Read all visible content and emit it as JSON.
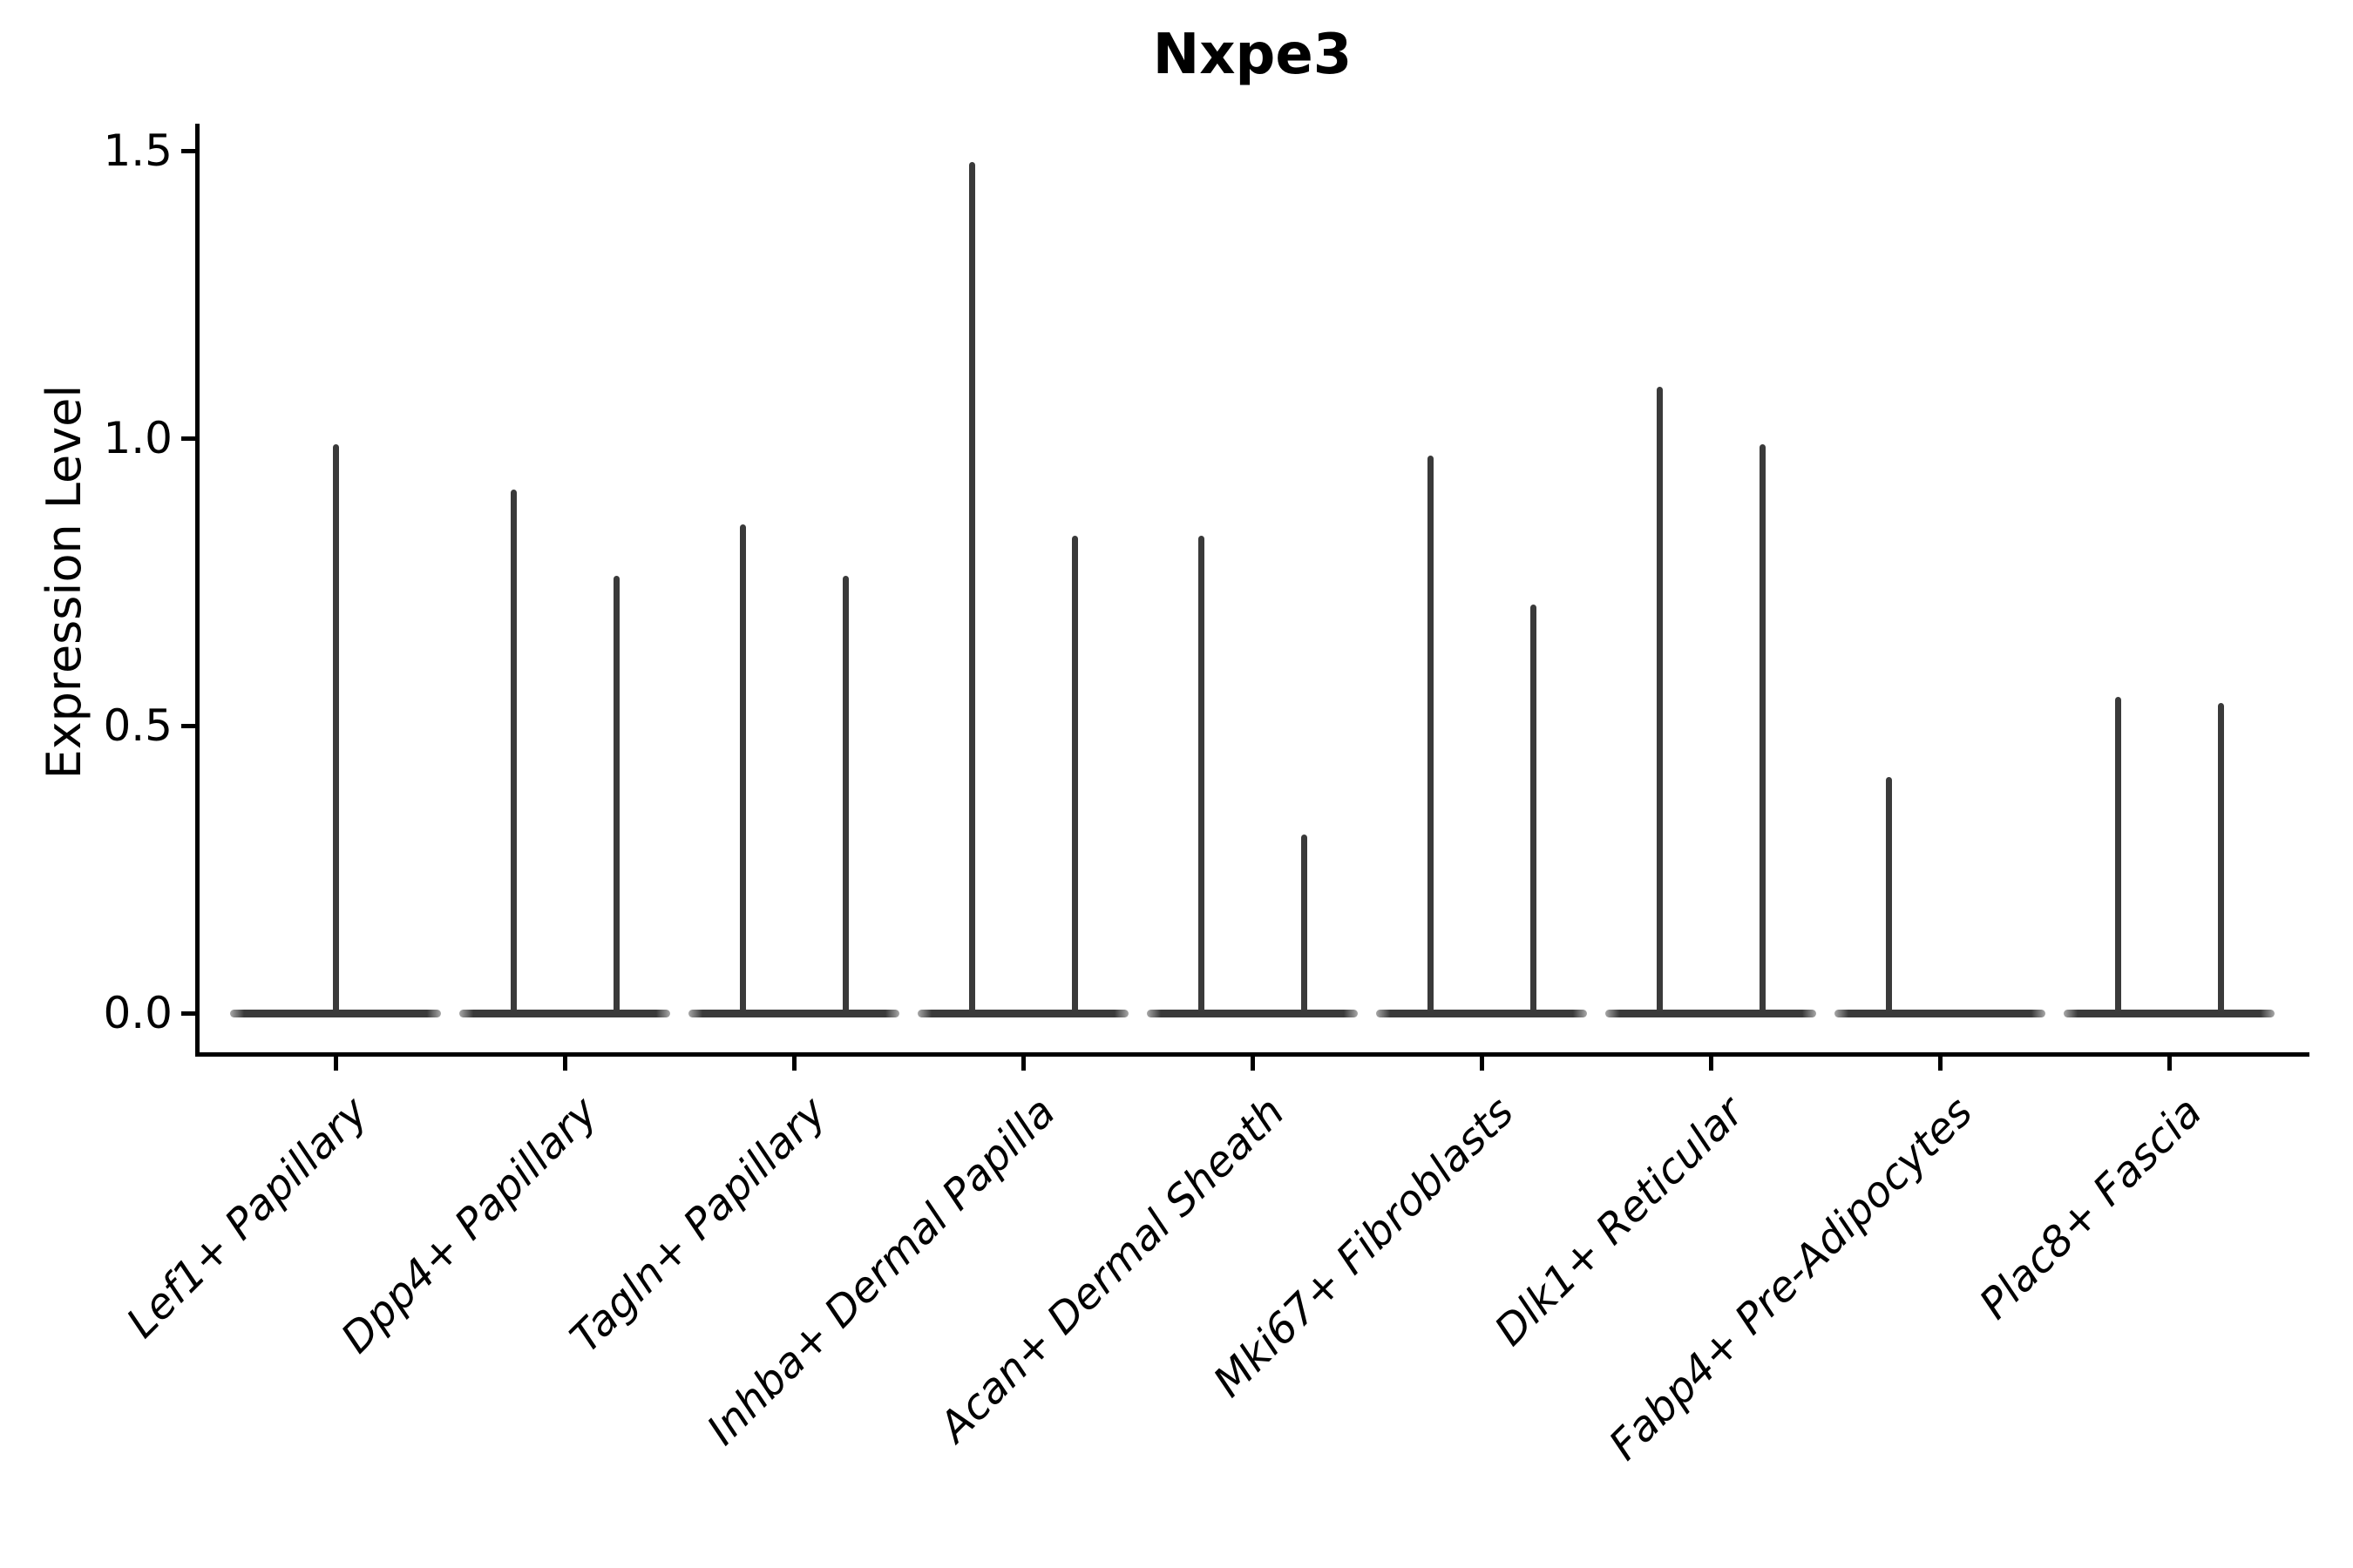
{
  "figure": {
    "background_color": "#ffffff",
    "text_color": "#000000"
  },
  "chart_data": {
    "type": "violin",
    "title": "Nxpe3",
    "xlabel": "",
    "ylabel": "Expression Level",
    "ylim": [
      0,
      1.5
    ],
    "yticks": [
      "0.0",
      "0.5",
      "1.0",
      "1.5"
    ],
    "grid": false,
    "legend": null,
    "layout_hints": {
      "x_tick_label_rotation_deg": 45,
      "x_tick_labels_italic": true,
      "spines": [
        "left",
        "bottom"
      ],
      "violin_shape": "flat zero-expression baseline with thin max-value spikes",
      "spike_positions_per_category": "center, or left/right pair"
    },
    "colors": {
      "violin": "#3a3a3a",
      "axes": "#000000",
      "title": "#000000"
    },
    "categories": [
      "Lef1+ Papillary",
      "Dpp4+ Papillary",
      "Tagln+ Papillary",
      "Inhba+ Dermal Papilla",
      "Acan+ Dermal Sheath",
      "Mki67+ Fibroblasts",
      "Dlk1+ Reticular",
      "Fabp4+ Pre-Adipocytes",
      "Plac8+ Fascia"
    ],
    "violins": [
      {
        "category": "Lef1+ Papillary",
        "spikes": [
          {
            "side": "center",
            "max_expression": 0.99
          }
        ]
      },
      {
        "category": "Dpp4+ Papillary",
        "spikes": [
          {
            "side": "left",
            "max_expression": 0.91
          },
          {
            "side": "right",
            "max_expression": 0.76
          }
        ]
      },
      {
        "category": "Tagln+ Papillary",
        "spikes": [
          {
            "side": "left",
            "max_expression": 0.85
          },
          {
            "side": "right",
            "max_expression": 0.76
          }
        ]
      },
      {
        "category": "Inhba+ Dermal Papilla",
        "spikes": [
          {
            "side": "left",
            "max_expression": 1.48
          },
          {
            "side": "right",
            "max_expression": 0.83
          }
        ]
      },
      {
        "category": "Acan+ Dermal Sheath",
        "spikes": [
          {
            "side": "left",
            "max_expression": 0.83
          },
          {
            "side": "right",
            "max_expression": 0.31
          }
        ]
      },
      {
        "category": "Mki67+ Fibroblasts",
        "spikes": [
          {
            "side": "left",
            "max_expression": 0.97
          },
          {
            "side": "right",
            "max_expression": 0.71
          }
        ]
      },
      {
        "category": "Dlk1+ Reticular",
        "spikes": [
          {
            "side": "left",
            "max_expression": 1.09
          },
          {
            "side": "right",
            "max_expression": 0.99
          }
        ]
      },
      {
        "category": "Fabp4+ Pre-Adipocytes",
        "spikes": [
          {
            "side": "left",
            "max_expression": 0.41
          }
        ]
      },
      {
        "category": "Plac8+ Fascia",
        "spikes": [
          {
            "side": "left",
            "max_expression": 0.55
          },
          {
            "side": "right",
            "max_expression": 0.54
          }
        ]
      }
    ]
  }
}
